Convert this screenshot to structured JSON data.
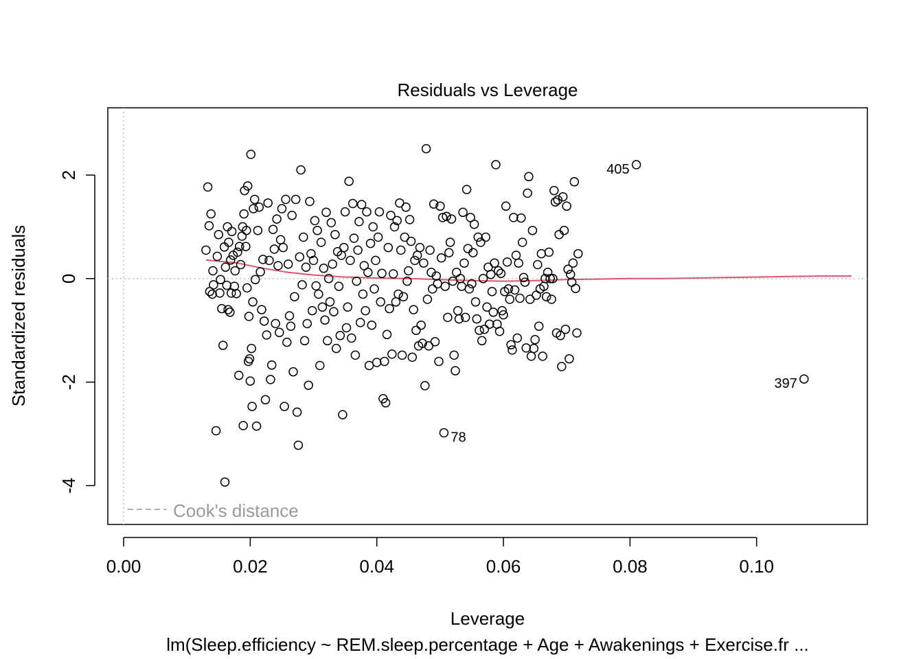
{
  "chart_data": {
    "type": "scatter",
    "title": "Residuals vs Leverage",
    "xlabel": "Leverage",
    "ylabel": "Standardized residuals",
    "subtitle": "lm(Sleep.efficiency ~ REM.sleep.percentage + Age + Awakenings + Exercise.fr ...",
    "xlim": [
      -0.0025,
      0.1175
    ],
    "ylim": [
      -4.75,
      3.3
    ],
    "x_ticks": [
      0.0,
      0.02,
      0.04,
      0.06,
      0.08,
      0.1
    ],
    "x_tick_labels": [
      "0.00",
      "0.02",
      "0.04",
      "0.06",
      "0.08",
      "0.10"
    ],
    "y_ticks": [
      -4,
      -2,
      0,
      2
    ],
    "y_tick_labels": [
      "-4",
      "-2",
      "0",
      "2"
    ],
    "grid": false,
    "reference_lines": {
      "h": 0,
      "v": 0,
      "style": "dotted",
      "color": "#bebebe"
    },
    "legend": {
      "label": "Cook's distance",
      "position": "bottom-left",
      "style": "dashed",
      "color": "#999999"
    },
    "smooth_color": "#df536b",
    "smooth": [
      [
        0.013,
        0.36
      ],
      [
        0.018,
        0.3
      ],
      [
        0.022,
        0.2
      ],
      [
        0.026,
        0.12
      ],
      [
        0.03,
        0.07
      ],
      [
        0.035,
        0.03
      ],
      [
        0.04,
        0.01
      ],
      [
        0.045,
        0.0
      ],
      [
        0.05,
        -0.02
      ],
      [
        0.055,
        -0.04
      ],
      [
        0.06,
        -0.05
      ],
      [
        0.065,
        -0.04
      ],
      [
        0.07,
        -0.02
      ],
      [
        0.075,
        -0.01
      ],
      [
        0.08,
        0.0
      ],
      [
        0.085,
        0.0
      ],
      [
        0.09,
        0.01
      ],
      [
        0.095,
        0.02
      ],
      [
        0.1,
        0.03
      ],
      [
        0.105,
        0.04
      ],
      [
        0.11,
        0.05
      ],
      [
        0.115,
        0.05
      ]
    ],
    "labeled_points": [
      {
        "label": "405",
        "x": 0.081,
        "y": 2.2,
        "side": "left"
      },
      {
        "label": "397",
        "x": 0.1075,
        "y": -1.94,
        "side": "left"
      },
      {
        "label": "78",
        "x": 0.0506,
        "y": -2.98,
        "side": "right"
      }
    ],
    "points": [
      [
        0.013,
        0.55
      ],
      [
        0.0133,
        1.77
      ],
      [
        0.0135,
        1.02
      ],
      [
        0.0138,
        1.25
      ],
      [
        0.0136,
        -0.25
      ],
      [
        0.014,
        -0.3
      ],
      [
        0.0141,
        0.15
      ],
      [
        0.0142,
        -0.12
      ],
      [
        0.0146,
        -2.94
      ],
      [
        0.0148,
        0.43
      ],
      [
        0.015,
        0.85
      ],
      [
        0.0152,
        -0.28
      ],
      [
        0.0153,
        -0.02
      ],
      [
        0.0155,
        -0.58
      ],
      [
        0.0157,
        -1.29
      ],
      [
        0.0159,
        0.61
      ],
      [
        0.016,
        -3.93
      ],
      [
        0.0161,
        0.22
      ],
      [
        0.0163,
        -0.13
      ],
      [
        0.0164,
        1.0
      ],
      [
        0.0165,
        -0.6
      ],
      [
        0.0166,
        0.7
      ],
      [
        0.0168,
        -0.65
      ],
      [
        0.0169,
        0.36
      ],
      [
        0.017,
        -0.28
      ],
      [
        0.0171,
        0.91
      ],
      [
        0.0173,
        0.45
      ],
      [
        0.0175,
        -0.15
      ],
      [
        0.0176,
        0.15
      ],
      [
        0.0178,
        -0.29
      ],
      [
        0.018,
        0.51
      ],
      [
        0.0182,
        -1.87
      ],
      [
        0.0183,
        0.62
      ],
      [
        0.0185,
        0.27
      ],
      [
        0.0187,
        0.82
      ],
      [
        0.0188,
        1.0
      ],
      [
        0.0189,
        -2.84
      ],
      [
        0.019,
        1.25
      ],
      [
        0.0191,
        1.7
      ],
      [
        0.0193,
        0.62
      ],
      [
        0.0194,
        0.93
      ],
      [
        0.0195,
        -0.18
      ],
      [
        0.0196,
        1.79
      ],
      [
        0.0197,
        -1.6
      ],
      [
        0.0198,
        -0.73
      ],
      [
        0.0199,
        -1.55
      ],
      [
        0.02,
        -1.98
      ],
      [
        0.0201,
        2.4
      ],
      [
        0.0202,
        -1.35
      ],
      [
        0.0203,
        -2.47
      ],
      [
        0.0204,
        -0.45
      ],
      [
        0.0205,
        1.35
      ],
      [
        0.0207,
        1.53
      ],
      [
        0.0208,
        -0.02
      ],
      [
        0.021,
        -2.85
      ],
      [
        0.0212,
        0.93
      ],
      [
        0.0214,
        1.38
      ],
      [
        0.0216,
        0.13
      ],
      [
        0.0218,
        -0.6
      ],
      [
        0.022,
        0.37
      ],
      [
        0.0222,
        -0.82
      ],
      [
        0.0224,
        -2.34
      ],
      [
        0.0226,
        -1.09
      ],
      [
        0.0228,
        1.46
      ],
      [
        0.023,
        0.35
      ],
      [
        0.0232,
        -1.95
      ],
      [
        0.0234,
        -1.67
      ],
      [
        0.0236,
        0.95
      ],
      [
        0.0238,
        0.57
      ],
      [
        0.024,
        -0.87
      ],
      [
        0.0242,
        1.15
      ],
      [
        0.0244,
        0.25
      ],
      [
        0.0246,
        -1.04
      ],
      [
        0.0248,
        0.75
      ],
      [
        0.025,
        1.35
      ],
      [
        0.0252,
        0.6
      ],
      [
        0.0254,
        -2.47
      ],
      [
        0.0256,
        1.53
      ],
      [
        0.0258,
        -1.23
      ],
      [
        0.026,
        0.28
      ],
      [
        0.0262,
        -0.72
      ],
      [
        0.0264,
        -0.92
      ],
      [
        0.0266,
        1.22
      ],
      [
        0.0268,
        -1.8
      ],
      [
        0.027,
        -0.35
      ],
      [
        0.0272,
        1.53
      ],
      [
        0.0274,
        -2.58
      ],
      [
        0.0276,
        -3.22
      ],
      [
        0.0278,
        0.42
      ],
      [
        0.028,
        2.1
      ],
      [
        0.0282,
        -0.12
      ],
      [
        0.0284,
        0.8
      ],
      [
        0.0286,
        -1.2
      ],
      [
        0.0288,
        0.22
      ],
      [
        0.029,
        -0.87
      ],
      [
        0.0292,
        -2.06
      ],
      [
        0.0294,
        1.49
      ],
      [
        0.0296,
        0.48
      ],
      [
        0.0298,
        -0.62
      ],
      [
        0.03,
        0.35
      ],
      [
        0.0302,
        1.12
      ],
      [
        0.0304,
        -0.14
      ],
      [
        0.0306,
        0.93
      ],
      [
        0.0308,
        -0.3
      ],
      [
        0.031,
        -1.68
      ],
      [
        0.0312,
        0.7
      ],
      [
        0.0314,
        -0.55
      ],
      [
        0.0316,
        0.2
      ],
      [
        0.0318,
        -0.8
      ],
      [
        0.032,
        1.28
      ],
      [
        0.0322,
        -1.2
      ],
      [
        0.0324,
        0.0
      ],
      [
        0.0326,
        -0.45
      ],
      [
        0.0328,
        1.08
      ],
      [
        0.033,
        0.28
      ],
      [
        0.0332,
        -0.64
      ],
      [
        0.0334,
        0.85
      ],
      [
        0.0336,
        -1.35
      ],
      [
        0.0338,
        0.52
      ],
      [
        0.034,
        -0.15
      ],
      [
        0.0342,
        -1.1
      ],
      [
        0.0344,
        0.45
      ],
      [
        0.0346,
        -2.63
      ],
      [
        0.0348,
        0.6
      ],
      [
        0.035,
        1.29
      ],
      [
        0.0352,
        -0.95
      ],
      [
        0.0354,
        -0.55
      ],
      [
        0.0356,
        1.88
      ],
      [
        0.0358,
        0.35
      ],
      [
        0.036,
        -1.15
      ],
      [
        0.0362,
        1.45
      ],
      [
        0.0364,
        0.78
      ],
      [
        0.0366,
        -1.48
      ],
      [
        0.0368,
        -0.05
      ],
      [
        0.037,
        0.55
      ],
      [
        0.0372,
        1.1
      ],
      [
        0.0374,
        -0.85
      ],
      [
        0.0376,
        1.43
      ],
      [
        0.0378,
        -0.3
      ],
      [
        0.038,
        0.25
      ],
      [
        0.0382,
        -0.62
      ],
      [
        0.0384,
        1.29
      ],
      [
        0.0386,
        0.12
      ],
      [
        0.0388,
        -1.68
      ],
      [
        0.039,
        0.68
      ],
      [
        0.0392,
        -0.9
      ],
      [
        0.0394,
        1.0
      ],
      [
        0.0396,
        -0.2
      ],
      [
        0.0398,
        0.35
      ],
      [
        0.04,
        -1.62
      ],
      [
        0.0402,
        0.8
      ],
      [
        0.0404,
        1.29
      ],
      [
        0.0406,
        -0.45
      ],
      [
        0.0408,
        0.1
      ],
      [
        0.041,
        -2.32
      ],
      [
        0.0412,
        -1.6
      ],
      [
        0.0414,
        -2.4
      ],
      [
        0.0416,
        -1.08
      ],
      [
        0.0418,
        0.6
      ],
      [
        0.042,
        -0.58
      ],
      [
        0.0422,
        1.22
      ],
      [
        0.0424,
        -1.46
      ],
      [
        0.0426,
        0.09
      ],
      [
        0.0428,
        1.0
      ],
      [
        0.043,
        -0.45
      ],
      [
        0.0432,
        1.12
      ],
      [
        0.0434,
        -0.3
      ],
      [
        0.0436,
        1.46
      ],
      [
        0.0438,
        0.55
      ],
      [
        0.044,
        -1.48
      ],
      [
        0.0442,
        -0.35
      ],
      [
        0.0444,
        0.8
      ],
      [
        0.0446,
        1.38
      ],
      [
        0.0448,
        -0.05
      ],
      [
        0.045,
        0.15
      ],
      [
        0.0452,
        1.14
      ],
      [
        0.0454,
        0.72
      ],
      [
        0.0456,
        -1.52
      ],
      [
        0.0458,
        -0.6
      ],
      [
        0.046,
        0.35
      ],
      [
        0.0462,
        -1.0
      ],
      [
        0.0464,
        0.45
      ],
      [
        0.0466,
        -1.3
      ],
      [
        0.0468,
        0.6
      ],
      [
        0.047,
        -0.9
      ],
      [
        0.0472,
        -1.25
      ],
      [
        0.0474,
        0.3
      ],
      [
        0.0476,
        -2.07
      ],
      [
        0.0478,
        2.51
      ],
      [
        0.048,
        -0.4
      ],
      [
        0.0482,
        -1.3
      ],
      [
        0.0484,
        0.55
      ],
      [
        0.0486,
        0.12
      ],
      [
        0.0488,
        -0.2
      ],
      [
        0.049,
        1.44
      ],
      [
        0.0492,
        -1.22
      ],
      [
        0.0494,
        0.05
      ],
      [
        0.0496,
        -0.1
      ],
      [
        0.0498,
        -1.6
      ],
      [
        0.05,
        1.4
      ],
      [
        0.0502,
        0.4
      ],
      [
        0.0504,
        1.18
      ],
      [
        0.0506,
        -2.98
      ],
      [
        0.0508,
        -0.15
      ],
      [
        0.051,
        1.2
      ],
      [
        0.0512,
        -0.75
      ],
      [
        0.0514,
        0.5
      ],
      [
        0.0516,
        0.7
      ],
      [
        0.0518,
        1.15
      ],
      [
        0.052,
        -0.05
      ],
      [
        0.0522,
        -1.48
      ],
      [
        0.0524,
        -1.78
      ],
      [
        0.0526,
        0.12
      ],
      [
        0.0528,
        -0.62
      ],
      [
        0.053,
        -0.78
      ],
      [
        0.0532,
        0.0
      ],
      [
        0.0534,
        -0.15
      ],
      [
        0.0536,
        1.28
      ],
      [
        0.0538,
        0.3
      ],
      [
        0.054,
        -0.75
      ],
      [
        0.0542,
        1.72
      ],
      [
        0.0544,
        0.58
      ],
      [
        0.0546,
        -0.2
      ],
      [
        0.0548,
        1.18
      ],
      [
        0.055,
        -0.1
      ],
      [
        0.0552,
        0.5
      ],
      [
        0.0554,
        1.05
      ],
      [
        0.0556,
        -0.45
      ],
      [
        0.0558,
        -0.78
      ],
      [
        0.056,
        0.8
      ],
      [
        0.0562,
        -1.0
      ],
      [
        0.0564,
        0.7
      ],
      [
        0.0566,
        -1.2
      ],
      [
        0.0568,
        0.0
      ],
      [
        0.057,
        -0.98
      ],
      [
        0.0572,
        0.8
      ],
      [
        0.0574,
        -0.55
      ],
      [
        0.0576,
        0.22
      ],
      [
        0.0578,
        -0.88
      ],
      [
        0.058,
        0.08
      ],
      [
        0.0582,
        -0.25
      ],
      [
        0.0584,
        -0.65
      ],
      [
        0.0586,
        0.3
      ],
      [
        0.0588,
        2.2
      ],
      [
        0.059,
        -0.88
      ],
      [
        0.0592,
        0.15
      ],
      [
        0.0594,
        -1.02
      ],
      [
        0.0596,
        0.1
      ],
      [
        0.0598,
        -0.62
      ],
      [
        0.06,
        -0.7
      ],
      [
        0.0602,
        -0.25
      ],
      [
        0.0604,
        1.4
      ],
      [
        0.0606,
        0.32
      ],
      [
        0.0608,
        -0.2
      ],
      [
        0.061,
        -0.4
      ],
      [
        0.0612,
        -1.28
      ],
      [
        0.0614,
        -1.38
      ],
      [
        0.0616,
        1.18
      ],
      [
        0.0618,
        -0.22
      ],
      [
        0.062,
        0.45
      ],
      [
        0.0622,
        -1.15
      ],
      [
        0.0624,
        0.3
      ],
      [
        0.0626,
        -0.38
      ],
      [
        0.0628,
        1.17
      ],
      [
        0.063,
        0.7
      ],
      [
        0.0632,
        0.02
      ],
      [
        0.0634,
        -0.07
      ],
      [
        0.0636,
        -1.34
      ],
      [
        0.0638,
        1.65
      ],
      [
        0.064,
        1.97
      ],
      [
        0.0642,
        -0.4
      ],
      [
        0.0644,
        -1.5
      ],
      [
        0.0646,
        0.93
      ],
      [
        0.0648,
        -1.35
      ],
      [
        0.065,
        -1.18
      ],
      [
        0.0652,
        -0.32
      ],
      [
        0.0654,
        0.27
      ],
      [
        0.0656,
        -0.92
      ],
      [
        0.0658,
        -0.2
      ],
      [
        0.066,
        0.48
      ],
      [
        0.0662,
        -1.5
      ],
      [
        0.0664,
        -0.15
      ],
      [
        0.0666,
        0.0
      ],
      [
        0.0668,
        -0.35
      ],
      [
        0.067,
        0.12
      ],
      [
        0.0672,
        0.51
      ],
      [
        0.0674,
        0.0
      ],
      [
        0.0676,
        -0.4
      ],
      [
        0.0678,
        0.0
      ],
      [
        0.068,
        1.7
      ],
      [
        0.0682,
        1.48
      ],
      [
        0.0684,
        -1.05
      ],
      [
        0.0686,
        1.52
      ],
      [
        0.0688,
        0.85
      ],
      [
        0.069,
        -1.1
      ],
      [
        0.0692,
        -1.7
      ],
      [
        0.0694,
        1.58
      ],
      [
        0.0696,
        0.93
      ],
      [
        0.0698,
        -0.98
      ],
      [
        0.07,
        1.4
      ],
      [
        0.0702,
        0.18
      ],
      [
        0.0704,
        -1.55
      ],
      [
        0.0706,
        0.08
      ],
      [
        0.0708,
        -0.07
      ],
      [
        0.071,
        0.3
      ],
      [
        0.0712,
        1.87
      ],
      [
        0.0714,
        -0.19
      ],
      [
        0.0716,
        -1.05
      ],
      [
        0.0718,
        0.48
      ],
      [
        0.081,
        2.2
      ],
      [
        0.1075,
        -1.94
      ]
    ]
  }
}
